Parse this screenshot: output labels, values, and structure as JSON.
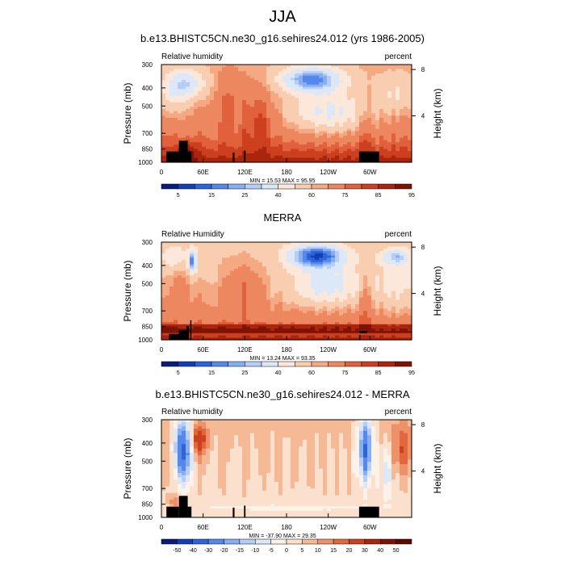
{
  "figure": {
    "title": "JJA"
  },
  "chart_data": [
    {
      "type": "heatmap",
      "title": "b.e13.BHISTC5CN.ne30_g16.sehires24.012 (yrs 1986-2005)",
      "left_label": "Relative humidity",
      "right_label": "percent",
      "ylabel": "Pressure (mb)",
      "y2label": "Height (km)",
      "x_ticks": [
        "0",
        "60E",
        "120E",
        "180",
        "120W",
        "60W"
      ],
      "y_ticks": [
        "300",
        "400",
        "500",
        "700",
        "850",
        "1000"
      ],
      "height_ticks": [
        "8",
        "4"
      ],
      "stats": "MIN = 15.53  MAX = 95.95",
      "colorbar_labels": [
        "5",
        "15",
        "25",
        "40",
        "60",
        "75",
        "85",
        "95"
      ]
    },
    {
      "type": "heatmap",
      "title": "MERRA",
      "left_label": "Relative Humidity",
      "right_label": "percent",
      "ylabel": "Pressure (mb)",
      "y2label": "Height (km)",
      "x_ticks": [
        "0",
        "60E",
        "120E",
        "180",
        "120W",
        "60W"
      ],
      "y_ticks": [
        "300",
        "400",
        "500",
        "700",
        "850",
        "1000"
      ],
      "height_ticks": [
        "8",
        "4"
      ],
      "stats": "MIN = 13.24  MAX = 93.35",
      "colorbar_labels": [
        "5",
        "15",
        "25",
        "40",
        "60",
        "75",
        "85",
        "95"
      ]
    },
    {
      "type": "heatmap",
      "title": "b.e13.BHISTC5CN.ne30_g16.sehires24.012 - MERRA",
      "left_label": "Relative humidity",
      "right_label": "percent",
      "ylabel": "Pressure (mb)",
      "y2label": "Height (km)",
      "x_ticks": [
        "0",
        "60E",
        "120E",
        "180",
        "120W",
        "60W"
      ],
      "y_ticks": [
        "300",
        "400",
        "500",
        "700",
        "850",
        "1000"
      ],
      "height_ticks": [
        "8",
        "4"
      ],
      "stats": "MIN = -37.90  MAX = 29.35",
      "colorbar_labels": [
        "-50",
        "-40",
        "-30",
        "-20",
        "-15",
        "-10",
        "-5",
        "0",
        "5",
        "10",
        "15",
        "20",
        "30",
        "40",
        "50"
      ]
    }
  ],
  "colors": {
    "rh_scale": [
      "#0a1c7a",
      "#123fb5",
      "#2f63d8",
      "#5588ea",
      "#86aef2",
      "#b6cef5",
      "#dce8f8",
      "#fbe8da",
      "#f9cdb0",
      "#f4a983",
      "#ed8760",
      "#e0613c",
      "#cc3f1f",
      "#a9250e",
      "#7d1205"
    ],
    "diff_scale": [
      "#0a1c7a",
      "#123fb5",
      "#2f63d8",
      "#5588ea",
      "#86aef2",
      "#b6cef5",
      "#dce8f8",
      "#fdf2ea",
      "#fbe0cd",
      "#f6b996",
      "#ee9169",
      "#e2673f",
      "#cc4220",
      "#a9250e",
      "#7d1205",
      "#5c0802"
    ]
  }
}
